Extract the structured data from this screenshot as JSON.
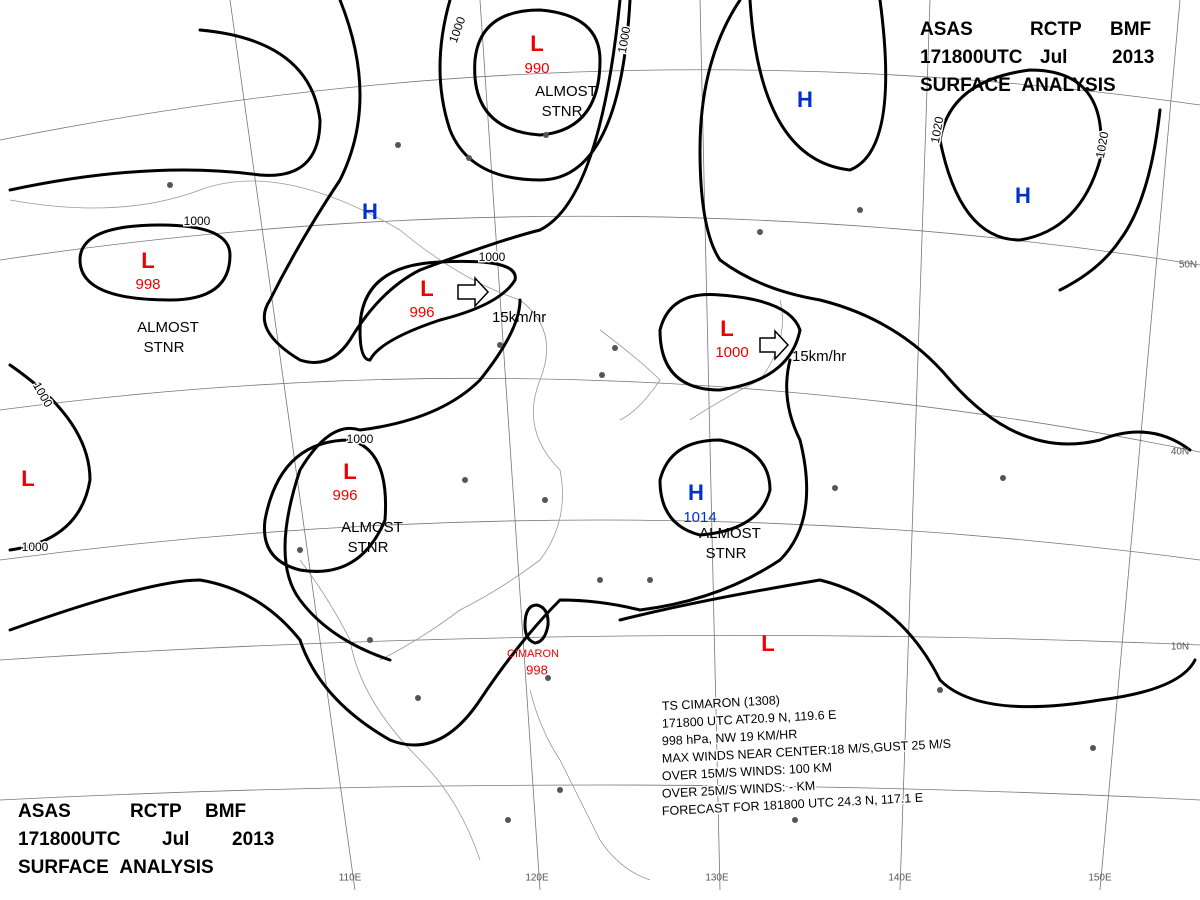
{
  "header_top": {
    "line1": [
      "ASAS",
      "RCTP",
      "BMF"
    ],
    "line2": [
      "171800UTC",
      "Jul",
      "2013"
    ],
    "line3": "SURFACE ANALYSIS"
  },
  "header_bottom": {
    "line1": [
      "ASAS",
      "RCTP",
      "BMF"
    ],
    "line2": [
      "171800UTC",
      "Jul",
      "2013"
    ],
    "line3": "SURFACE ANALYSIS"
  },
  "centers": [
    {
      "symbol": "L",
      "pressure": "990"
    },
    {
      "symbol": "H"
    },
    {
      "symbol": "L",
      "pressure": "998"
    },
    {
      "symbol": "L",
      "pressure": "996"
    },
    {
      "symbol": "L",
      "pressure": "1000"
    },
    {
      "symbol": "H"
    },
    {
      "symbol": "H"
    },
    {
      "symbol": "L"
    },
    {
      "symbol": "L",
      "pressure": "996"
    },
    {
      "symbol": "H",
      "pressure": "1014"
    },
    {
      "symbol": "L"
    }
  ],
  "isobar_labels": [
    "1000",
    "1000",
    "1000",
    "1000",
    "1000",
    "1000",
    "1000",
    "1020",
    "1020"
  ],
  "notes": [
    [
      "ALMOST",
      "STNR"
    ],
    [
      "ALMOST",
      "STNR"
    ],
    [
      "ALMOST",
      "STNR"
    ],
    [
      "ALMOST",
      "STNR"
    ]
  ],
  "motions": [
    "15km/hr",
    "15km/hr"
  ],
  "typhoon": {
    "name": "CIMARON",
    "pressure": "998",
    "info": [
      "TS CIMARON (1308)",
      "171800 UTC AT20.9 N, 119.6 E",
      "998 hPa, NW 19 KM/HR",
      "MAX WINDS NEAR CENTER:18 M/S,GUST 25 M/S",
      "OVER 15M/S WINDS: 100 KM",
      "OVER 25M/S WINDS: - KM",
      "FORECAST FOR 181800 UTC 24.3 N, 117.1 E"
    ]
  },
  "longitudes": [
    "110E",
    "120E",
    "130E",
    "140E",
    "150E"
  ],
  "latitudes": [
    "50N",
    "40N",
    "10N"
  ]
}
